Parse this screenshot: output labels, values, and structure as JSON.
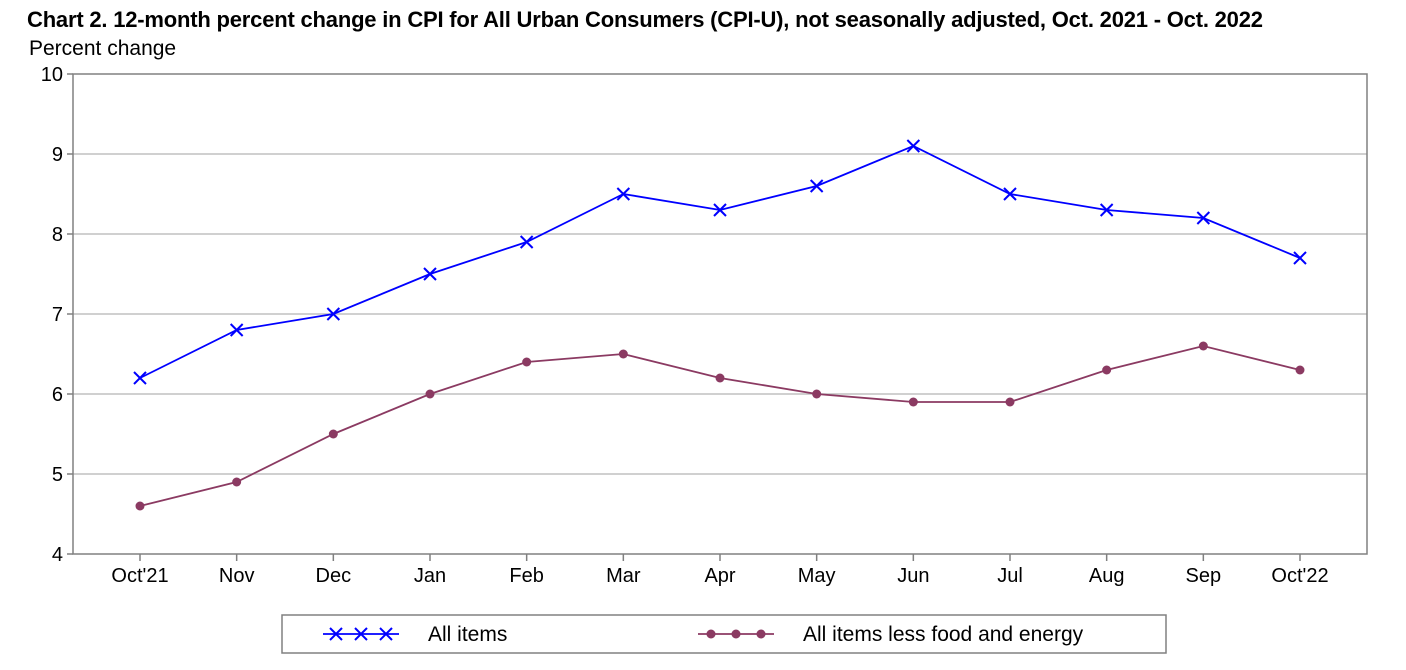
{
  "chart_data": {
    "type": "line",
    "title": "Chart 2. 12-month percent change in CPI for All Urban Consumers (CPI-U), not seasonally adjusted, Oct. 2021 - Oct. 2022",
    "ylabel": "Percent change",
    "xlabel": "",
    "categories": [
      "Oct'21",
      "Nov",
      "Dec",
      "Jan",
      "Feb",
      "Mar",
      "Apr",
      "May",
      "Jun",
      "Jul",
      "Aug",
      "Sep",
      "Oct'22"
    ],
    "ylim": [
      4,
      10
    ],
    "yticks": [
      4,
      5,
      6,
      7,
      8,
      9,
      10
    ],
    "grid": true,
    "legend_position": "bottom",
    "series": [
      {
        "name": "All items",
        "color": "#0000ff",
        "marker": "x",
        "values": [
          6.2,
          6.8,
          7.0,
          7.5,
          7.9,
          8.5,
          8.3,
          8.6,
          9.1,
          8.5,
          8.3,
          8.2,
          7.7
        ]
      },
      {
        "name": "All items less food and energy",
        "color": "#8b3a62",
        "marker": "circle",
        "values": [
          4.6,
          4.9,
          5.5,
          6.0,
          6.4,
          6.5,
          6.2,
          6.0,
          5.9,
          5.9,
          6.3,
          6.6,
          6.3
        ]
      }
    ]
  }
}
